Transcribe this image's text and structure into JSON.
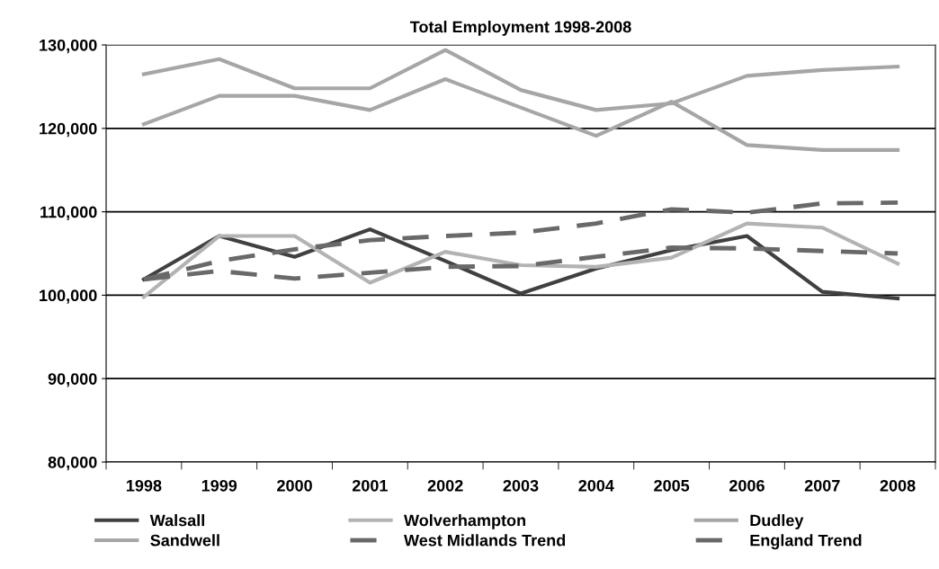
{
  "chart_data": {
    "type": "line",
    "title": "Total Employment 1998-2008",
    "categories": [
      "1998",
      "1999",
      "2000",
      "2001",
      "2002",
      "2003",
      "2004",
      "2005",
      "2006",
      "2007",
      "2008"
    ],
    "series": [
      {
        "name": "Walsall",
        "color": "#404040",
        "values": [
          101900,
          107100,
          104600,
          107900,
          104100,
          100200,
          103200,
          105400,
          107100,
          100400,
          99600
        ]
      },
      {
        "name": "Wolverhampton",
        "color": "#b3b3b3",
        "values": [
          99800,
          107100,
          107100,
          101500,
          105200,
          103600,
          103400,
          104500,
          108600,
          108100,
          103800
        ]
      },
      {
        "name": "Dudley",
        "color": "#a6a6a6",
        "values": [
          126500,
          128300,
          124800,
          124800,
          129400,
          124600,
          122200,
          123000,
          126300,
          127000,
          127400
        ]
      },
      {
        "name": "Sandwell",
        "color": "#a6a6a6",
        "values": [
          120500,
          123900,
          123900,
          122200,
          125900,
          122500,
          119100,
          123200,
          118000,
          117400,
          117400
        ]
      },
      {
        "name": "West Midlands Trend",
        "color": "#696969",
        "line_style": "dashed",
        "values": [
          101900,
          104100,
          105500,
          106600,
          107100,
          107500,
          108600,
          110300,
          109900,
          111000,
          111100
        ]
      },
      {
        "name": "England Trend",
        "color": "#696969",
        "line_style": "dashed",
        "values": [
          101900,
          102900,
          102000,
          102700,
          103400,
          103500,
          104600,
          105700,
          105600,
          105300,
          105000
        ]
      }
    ],
    "ylim": [
      80000,
      130000
    ],
    "yticks": [
      {
        "value": 80000,
        "label": "80,000"
      },
      {
        "value": 90000,
        "label": "90,000"
      },
      {
        "value": 100000,
        "label": "100,000"
      },
      {
        "value": 110000,
        "label": "110,000"
      },
      {
        "value": 120000,
        "label": "120,000"
      },
      {
        "value": 130000,
        "label": "130,000"
      }
    ],
    "grid": "y",
    "legend": "bottom",
    "marker": "none"
  }
}
